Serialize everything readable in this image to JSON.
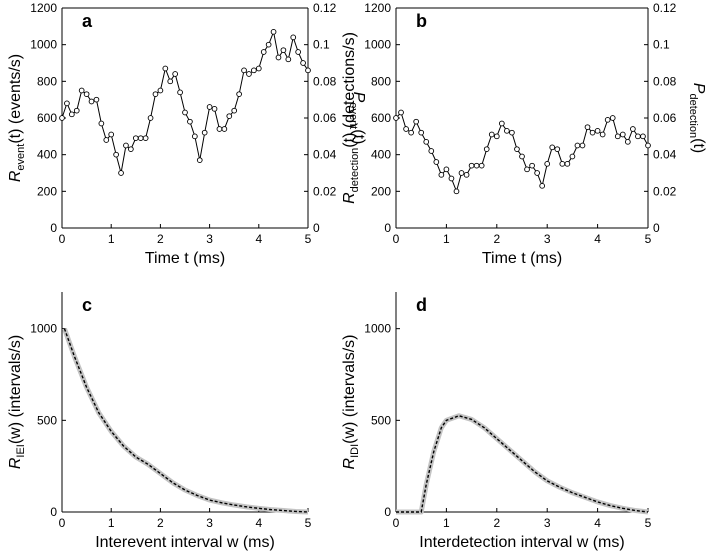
{
  "chart_data": [
    {
      "type": "line",
      "title": "a",
      "xlabel": "Time t (ms)",
      "ylabel": [
        "R",
        "event",
        "(t) (events/s)"
      ],
      "y2label": [
        "P",
        "event",
        "(t)"
      ],
      "xlim": [
        0,
        5
      ],
      "xticks": [
        0,
        1,
        2,
        3,
        4,
        5
      ],
      "ylim": [
        0,
        1200
      ],
      "yticks": [
        0,
        200,
        400,
        600,
        800,
        1000,
        1200
      ],
      "y2lim": [
        0,
        0.12
      ],
      "y2ticks": [
        0,
        0.02,
        0.04,
        0.06,
        0.08,
        0.1,
        0.12
      ],
      "box": true,
      "x": [
        0,
        0.1,
        0.2,
        0.3,
        0.4,
        0.5,
        0.6,
        0.7,
        0.8,
        0.9,
        1,
        1.1,
        1.2,
        1.3,
        1.4,
        1.5,
        1.6,
        1.7,
        1.8,
        1.9,
        2,
        2.1,
        2.2,
        2.3,
        2.4,
        2.5,
        2.6,
        2.7,
        2.8,
        2.9,
        3,
        3.1,
        3.2,
        3.3,
        3.4,
        3.5,
        3.6,
        3.7,
        3.8,
        3.9,
        4,
        4.1,
        4.2,
        4.3,
        4.4,
        4.5,
        4.6,
        4.7,
        4.8,
        4.9,
        5
      ],
      "series": [
        {
          "color": "#000000",
          "markers": true,
          "values": [
            600,
            680,
            620,
            640,
            750,
            730,
            690,
            700,
            570,
            480,
            510,
            400,
            300,
            450,
            430,
            490,
            490,
            490,
            600,
            730,
            750,
            870,
            800,
            840,
            740,
            630,
            580,
            500,
            370,
            520,
            660,
            650,
            540,
            540,
            610,
            640,
            730,
            860,
            840,
            860,
            870,
            960,
            1000,
            1070,
            930,
            970,
            920,
            1040,
            960,
            900,
            860
          ]
        }
      ]
    },
    {
      "type": "line",
      "title": "b",
      "xlabel": "Time t (ms)",
      "ylabel": [
        "R",
        "detection",
        "(t) (detections/s)"
      ],
      "y2label": [
        "P",
        "detection",
        "(t)"
      ],
      "xlim": [
        0,
        5
      ],
      "xticks": [
        0,
        1,
        2,
        3,
        4,
        5
      ],
      "ylim": [
        0,
        1200
      ],
      "yticks": [
        0,
        200,
        400,
        600,
        800,
        1000,
        1200
      ],
      "y2lim": [
        0,
        0.12
      ],
      "y2ticks": [
        0,
        0.02,
        0.04,
        0.06,
        0.08,
        0.1,
        0.12
      ],
      "box": true,
      "x": [
        0,
        0.1,
        0.2,
        0.3,
        0.4,
        0.5,
        0.6,
        0.7,
        0.8,
        0.9,
        1,
        1.1,
        1.2,
        1.3,
        1.4,
        1.5,
        1.6,
        1.7,
        1.8,
        1.9,
        2,
        2.1,
        2.2,
        2.3,
        2.4,
        2.5,
        2.6,
        2.7,
        2.8,
        2.9,
        3,
        3.1,
        3.2,
        3.3,
        3.4,
        3.5,
        3.6,
        3.7,
        3.8,
        3.9,
        4,
        4.1,
        4.2,
        4.3,
        4.4,
        4.5,
        4.6,
        4.7,
        4.8,
        4.9,
        5
      ],
      "series": [
        {
          "color": "#000000",
          "markers": true,
          "values": [
            600,
            630,
            540,
            520,
            580,
            520,
            470,
            420,
            360,
            290,
            320,
            270,
            200,
            300,
            290,
            340,
            340,
            340,
            430,
            510,
            500,
            570,
            530,
            520,
            430,
            390,
            320,
            340,
            300,
            230,
            350,
            440,
            430,
            350,
            350,
            390,
            450,
            450,
            550,
            520,
            530,
            510,
            590,
            600,
            500,
            510,
            470,
            540,
            500,
            500,
            450
          ]
        }
      ]
    },
    {
      "type": "line",
      "title": "c",
      "xlabel": "Interevent interval w (ms)",
      "ylabel": [
        "R",
        "IEI",
        "(w) (intervals/s)"
      ],
      "xlim": [
        0,
        5
      ],
      "xticks": [
        0,
        1,
        2,
        3,
        4,
        5
      ],
      "ylim": [
        0,
        1200
      ],
      "yticks": [
        0,
        500,
        1000
      ],
      "box": false,
      "x": [
        0.05,
        0.25,
        0.5,
        0.75,
        1,
        1.25,
        1.5,
        1.75,
        2,
        2.25,
        2.5,
        2.75,
        3,
        3.25,
        3.5,
        3.75,
        4,
        4.25,
        4.5,
        4.75,
        5
      ],
      "series": [
        {
          "color": "#000000",
          "band_color": "#c4c4c4",
          "dashed": true,
          "values": [
            1000,
            850,
            680,
            540,
            440,
            360,
            300,
            260,
            210,
            160,
            120,
            90,
            65,
            50,
            38,
            28,
            20,
            13,
            8,
            3,
            0
          ]
        }
      ]
    },
    {
      "type": "line",
      "title": "d",
      "xlabel": "Interdetection interval w (ms)",
      "ylabel": [
        "R",
        "IDI",
        "(w) (intervals/s)"
      ],
      "xlim": [
        0,
        5
      ],
      "xticks": [
        0,
        1,
        2,
        3,
        4,
        5
      ],
      "ylim": [
        0,
        1200
      ],
      "yticks": [
        0,
        500,
        1000
      ],
      "box": false,
      "x": [
        0,
        0.5,
        0.6,
        0.75,
        0.9,
        1,
        1.25,
        1.5,
        1.75,
        2,
        2.25,
        2.5,
        2.75,
        3,
        3.25,
        3.5,
        3.75,
        4,
        4.25,
        4.5,
        4.75,
        5
      ],
      "series": [
        {
          "color": "#000000",
          "band_color": "#c4c4c4",
          "dashed": true,
          "values": [
            0,
            0,
            150,
            330,
            460,
            500,
            525,
            505,
            460,
            400,
            340,
            280,
            220,
            170,
            135,
            105,
            80,
            55,
            35,
            20,
            8,
            0
          ]
        }
      ]
    }
  ]
}
